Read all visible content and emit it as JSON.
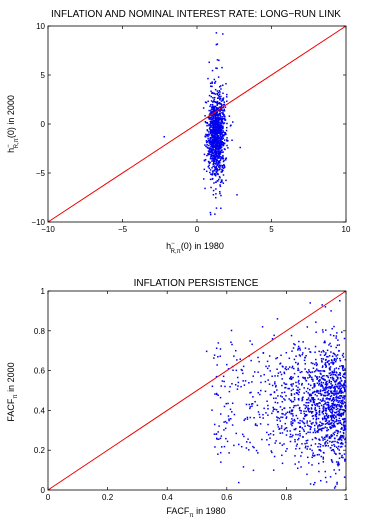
{
  "chart_data": [
    {
      "type": "scatter",
      "title": "INFLATION AND NOMINAL INTEREST RATE: LONG−RUN LINK",
      "xlabel": {
        "base": "h",
        "sup": "−",
        "sub": "R,π",
        "tail": "(0) in 1980"
      },
      "ylabel": {
        "base": "h",
        "sup": "−",
        "sub": "R,π",
        "tail": "(0) in 2000"
      },
      "xlim": [
        -10,
        10
      ],
      "ylim": [
        -10,
        10
      ],
      "xticks": [
        -10,
        -5,
        0,
        5,
        10
      ],
      "yticks": [
        -10,
        -5,
        0,
        5,
        10
      ],
      "xtick_labels": [
        "−10",
        "−5",
        "0",
        "5",
        "10"
      ],
      "ytick_labels": [
        "−10",
        "−5",
        "0",
        "5",
        "10"
      ],
      "grid": false,
      "colors": {
        "points": "#0000ee",
        "line": "#ee0000"
      },
      "reference_line": {
        "x": [
          -10,
          10
        ],
        "y": [
          -10,
          10
        ]
      },
      "points_description": {
        "x_center": 1.3,
        "x_spread": 0.3,
        "y_center": -1.2,
        "y_spread": 2.0,
        "n": 1100
      },
      "outliers": [
        [
          -2.2,
          -1.3
        ],
        [
          0.9,
          -0.2
        ],
        [
          2.4,
          0.2
        ],
        [
          2.9,
          -2.4
        ],
        [
          1.3,
          9.3
        ],
        [
          1.3,
          8.1
        ],
        [
          1.2,
          -9.2
        ],
        [
          1.6,
          -8.6
        ],
        [
          0.5,
          -3.1
        ],
        [
          2.0,
          3.0
        ]
      ]
    },
    {
      "type": "scatter",
      "title": "INFLATION PERSISTENCE",
      "xlabel": {
        "base": "FACF",
        "sub": "π",
        "tail": " in 1980"
      },
      "ylabel": {
        "base": "FACF",
        "sub": "π",
        "tail": " in 2000"
      },
      "xlim": [
        0,
        1
      ],
      "ylim": [
        0,
        1
      ],
      "xticks": [
        0,
        0.2,
        0.4,
        0.6,
        0.8,
        1
      ],
      "yticks": [
        0,
        0.2,
        0.4,
        0.6,
        0.8,
        1
      ],
      "xtick_labels": [
        "0",
        "0.2",
        "0.4",
        "0.6",
        "0.8",
        "1"
      ],
      "ytick_labels": [
        "0",
        "0.2",
        "0.4",
        "0.6",
        "0.8",
        "1"
      ],
      "grid": false,
      "colors": {
        "points": "#0000ee",
        "line": "#ee0000"
      },
      "reference_line": {
        "x": [
          0,
          1
        ],
        "y": [
          0,
          1
        ]
      },
      "points_description": {
        "x_min": 0.55,
        "x_max": 1.0,
        "x_mode": 0.9,
        "y_center": 0.43,
        "y_spread": 0.16,
        "n": 1400
      },
      "outliers": [
        [
          0.57,
          0.18
        ],
        [
          0.58,
          0.14
        ],
        [
          0.6,
          0.63
        ],
        [
          0.63,
          0.7
        ],
        [
          0.72,
          0.82
        ],
        [
          0.77,
          0.86
        ],
        [
          0.88,
          0.94
        ],
        [
          0.92,
          0.93
        ],
        [
          0.95,
          0.9
        ],
        [
          0.97,
          0.03
        ]
      ]
    }
  ]
}
